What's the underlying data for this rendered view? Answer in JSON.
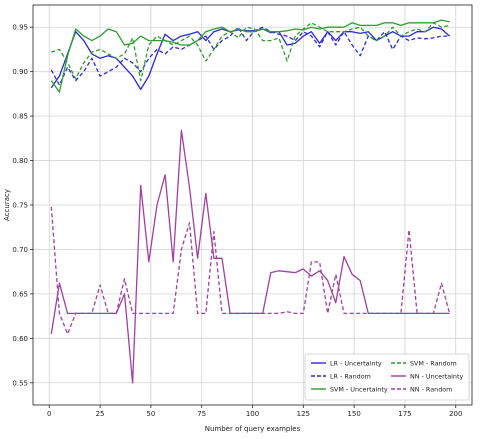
{
  "chart_data": {
    "type": "line",
    "xlabel": "Number of query examples",
    "ylabel": "Accuracy",
    "xlim": [
      -8,
      208
    ],
    "ylim": [
      0.525,
      0.975
    ],
    "x_ticks": [
      0,
      25,
      50,
      75,
      100,
      125,
      150,
      175,
      200
    ],
    "y_ticks": [
      0.55,
      0.6,
      0.65,
      0.7,
      0.75,
      0.8,
      0.85,
      0.9,
      0.95
    ],
    "grid": true,
    "legend_position": "lower-right",
    "x": [
      1,
      5,
      9,
      13,
      17,
      21,
      25,
      29,
      33,
      37,
      41,
      45,
      49,
      53,
      57,
      61,
      65,
      69,
      73,
      77,
      81,
      85,
      89,
      93,
      97,
      101,
      105,
      109,
      113,
      117,
      121,
      125,
      129,
      133,
      137,
      141,
      145,
      149,
      153,
      157,
      161,
      165,
      169,
      173,
      177,
      181,
      185,
      189,
      193,
      197
    ],
    "series": [
      {
        "name": "LR - Uncertainty",
        "color": "#2a2ad8",
        "dash": "solid",
        "values": [
          0.882,
          0.895,
          0.92,
          0.945,
          0.935,
          0.92,
          0.915,
          0.918,
          0.915,
          0.905,
          0.895,
          0.88,
          0.895,
          0.92,
          0.942,
          0.935,
          0.94,
          0.942,
          0.945,
          0.935,
          0.945,
          0.948,
          0.945,
          0.947,
          0.946,
          0.946,
          0.948,
          0.944,
          0.945,
          0.93,
          0.932,
          0.94,
          0.945,
          0.932,
          0.945,
          0.935,
          0.945,
          0.945,
          0.943,
          0.945,
          0.935,
          0.94,
          0.945,
          0.94,
          0.94,
          0.945,
          0.945,
          0.95,
          0.948,
          0.94
        ]
      },
      {
        "name": "LR - Random",
        "color": "#2a2ad8",
        "dash": "dashed",
        "values": [
          0.902,
          0.885,
          0.905,
          0.89,
          0.9,
          0.915,
          0.895,
          0.9,
          0.905,
          0.915,
          0.91,
          0.9,
          0.915,
          0.925,
          0.92,
          0.928,
          0.925,
          0.93,
          0.935,
          0.94,
          0.925,
          0.935,
          0.94,
          0.95,
          0.935,
          0.946,
          0.95,
          0.945,
          0.942,
          0.94,
          0.935,
          0.945,
          0.94,
          0.928,
          0.945,
          0.93,
          0.945,
          0.93,
          0.918,
          0.94,
          0.935,
          0.945,
          0.925,
          0.94,
          0.935,
          0.938,
          0.937,
          0.938,
          0.94,
          0.94
        ]
      },
      {
        "name": "SVM - Uncertainty",
        "color": "#2e9e2e",
        "dash": "solid",
        "values": [
          0.89,
          0.877,
          0.918,
          0.948,
          0.94,
          0.935,
          0.94,
          0.948,
          0.945,
          0.93,
          0.932,
          0.94,
          0.935,
          0.935,
          0.935,
          0.933,
          0.93,
          0.93,
          0.935,
          0.945,
          0.948,
          0.95,
          0.945,
          0.948,
          0.945,
          0.945,
          0.948,
          0.945,
          0.945,
          0.946,
          0.948,
          0.947,
          0.95,
          0.948,
          0.95,
          0.95,
          0.95,
          0.955,
          0.952,
          0.952,
          0.952,
          0.955,
          0.955,
          0.952,
          0.955,
          0.955,
          0.955,
          0.955,
          0.958,
          0.956
        ]
      },
      {
        "name": "SVM - Random",
        "color": "#2e9e2e",
        "dash": "dashed",
        "values": [
          0.922,
          0.925,
          0.91,
          0.892,
          0.91,
          0.922,
          0.925,
          0.92,
          0.915,
          0.92,
          0.938,
          0.89,
          0.93,
          0.94,
          0.935,
          0.93,
          0.935,
          0.94,
          0.93,
          0.912,
          0.925,
          0.94,
          0.945,
          0.938,
          0.95,
          0.948,
          0.935,
          0.935,
          0.938,
          0.912,
          0.94,
          0.948,
          0.955,
          0.95,
          0.945,
          0.945,
          0.945,
          0.948,
          0.95,
          0.94,
          0.935,
          0.94,
          0.95,
          0.94,
          0.945,
          0.948,
          0.945,
          0.955,
          0.95,
          0.952
        ]
      },
      {
        "name": "NN - Uncertainty",
        "color": "#a040a0",
        "dash": "solid",
        "values": [
          0.605,
          0.662,
          0.628,
          0.628,
          0.628,
          0.628,
          0.628,
          0.628,
          0.628,
          0.65,
          0.55,
          0.772,
          0.686,
          0.75,
          0.784,
          0.686,
          0.834,
          0.77,
          0.69,
          0.763,
          0.69,
          0.69,
          0.628,
          0.628,
          0.628,
          0.628,
          0.628,
          0.674,
          0.676,
          0.675,
          0.674,
          0.678,
          0.67,
          0.676,
          0.665,
          0.64,
          0.692,
          0.672,
          0.665,
          0.628,
          0.628,
          0.628,
          0.628,
          0.628,
          0.628,
          0.628,
          0.628,
          0.628,
          0.628,
          0.628
        ]
      },
      {
        "name": "NN - Random",
        "color": "#a040a0",
        "dash": "dashed",
        "values": [
          0.748,
          0.628,
          0.605,
          0.628,
          0.628,
          0.628,
          0.66,
          0.628,
          0.628,
          0.667,
          0.628,
          0.628,
          0.628,
          0.628,
          0.628,
          0.628,
          0.7,
          0.73,
          0.628,
          0.628,
          0.72,
          0.628,
          0.628,
          0.628,
          0.628,
          0.628,
          0.628,
          0.628,
          0.628,
          0.63,
          0.628,
          0.628,
          0.686,
          0.686,
          0.628,
          0.672,
          0.628,
          0.628,
          0.628,
          0.628,
          0.628,
          0.628,
          0.628,
          0.628,
          0.722,
          0.628,
          0.628,
          0.628,
          0.662,
          0.628
        ]
      }
    ]
  }
}
